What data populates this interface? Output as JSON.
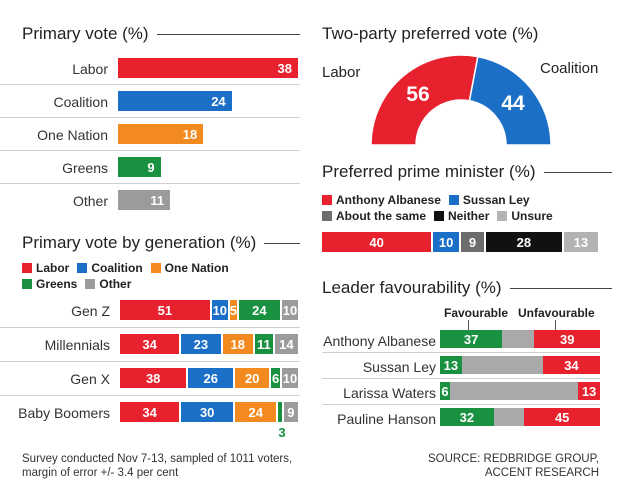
{
  "colors": {
    "labor": "#e8212e",
    "coalition": "#1c6fc6",
    "one_nation": "#f28a1f",
    "greens": "#1a9140",
    "other": "#9b9b9b",
    "about_same": "#6d6d6d",
    "neither": "#111111",
    "unsure": "#b3b3b3"
  },
  "primary": {
    "title": "Primary vote (%)"
  },
  "tpp": {
    "title": "Two-party preferred vote (%)",
    "left_label": "Labor",
    "right_label": "Coalition"
  },
  "ppm": {
    "title": "Preferred prime minister (%)"
  },
  "gen": {
    "title": "Primary vote by generation (%)"
  },
  "fav": {
    "title": "Leader favourability (%)",
    "col_fav": "Favourable",
    "col_unfav": "Unfavourable"
  },
  "footer": {
    "note_line1": "Survey conducted Nov 7-13,  sampled of 1011 voters,",
    "note_line2": "margin of error +/- 3.4 per cent",
    "source_line1": "SOURCE: REDBRIDGE GROUP,",
    "source_line2": "ACCENT RESEARCH"
  },
  "chart_data": [
    {
      "type": "bar",
      "title": "Primary vote (%)",
      "categories": [
        "Labor",
        "Coalition",
        "One Nation",
        "Greens",
        "Other"
      ],
      "values": [
        38,
        24,
        18,
        9,
        11
      ],
      "colors": [
        "#e8212e",
        "#1c6fc6",
        "#f28a1f",
        "#1a9140",
        "#9b9b9b"
      ]
    },
    {
      "type": "pie",
      "title": "Two-party preferred vote (%)",
      "categories": [
        "Labor",
        "Coalition"
      ],
      "values": [
        56,
        44
      ],
      "colors": [
        "#e8212e",
        "#1c6fc6"
      ]
    },
    {
      "type": "bar",
      "title": "Preferred prime minister (%)",
      "categories": [
        "Anthony Albanese",
        "Sussan Ley",
        "About the same",
        "Neither",
        "Unsure"
      ],
      "values": [
        40,
        10,
        9,
        28,
        13
      ],
      "colors": [
        "#e8212e",
        "#1c6fc6",
        "#6d6d6d",
        "#111111",
        "#b3b3b3"
      ]
    },
    {
      "type": "bar",
      "title": "Primary vote by generation (%)",
      "categories": [
        "Gen Z",
        "Millennials",
        "Gen X",
        "Baby Boomers"
      ],
      "series": [
        {
          "name": "Labor",
          "color": "#e8212e",
          "values": [
            51,
            34,
            38,
            34
          ]
        },
        {
          "name": "Coalition",
          "color": "#1c6fc6",
          "values": [
            10,
            23,
            26,
            30
          ]
        },
        {
          "name": "One Nation",
          "color": "#f28a1f",
          "values": [
            5,
            18,
            20,
            24
          ]
        },
        {
          "name": "Greens",
          "color": "#1a9140",
          "values": [
            24,
            11,
            6,
            3
          ]
        },
        {
          "name": "Other",
          "color": "#9b9b9b",
          "values": [
            10,
            14,
            10,
            9
          ]
        }
      ]
    },
    {
      "type": "bar",
      "title": "Leader favourability (%)",
      "categories": [
        "Anthony Albanese",
        "Sussan Ley",
        "Larissa Waters",
        "Pauline Hanson"
      ],
      "series": [
        {
          "name": "Favourable",
          "color": "#1a9140",
          "values": [
            37,
            13,
            6,
            32
          ]
        },
        {
          "name": "Unfavourable",
          "color": "#e8212e",
          "values": [
            39,
            34,
            13,
            45
          ]
        }
      ]
    }
  ]
}
